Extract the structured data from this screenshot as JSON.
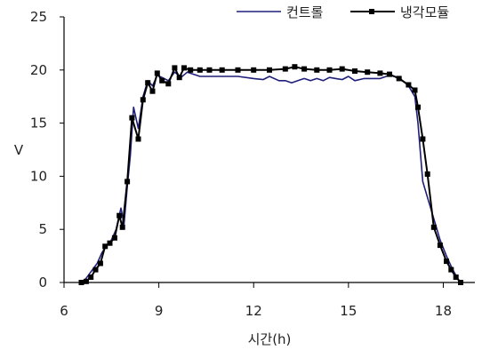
{
  "chart_data": {
    "type": "line",
    "xlabel": "시간(h)",
    "ylabel": "V",
    "xlim": [
      6,
      19
    ],
    "ylim": [
      0,
      25
    ],
    "xticks": [
      6,
      9,
      12,
      15,
      18
    ],
    "yticks": [
      0,
      5,
      10,
      15,
      20,
      25
    ],
    "grid": false,
    "legend_position": "top-right",
    "series": [
      {
        "name": "컨트롤",
        "color": "#1f1f7a",
        "marker": "none",
        "points": [
          [
            6.6,
            0.0
          ],
          [
            6.75,
            0.6
          ],
          [
            6.9,
            1.2
          ],
          [
            7.05,
            1.8
          ],
          [
            7.2,
            2.8
          ],
          [
            7.35,
            3.5
          ],
          [
            7.5,
            4.0
          ],
          [
            7.65,
            5.0
          ],
          [
            7.8,
            7.0
          ],
          [
            7.9,
            5.5
          ],
          [
            8.0,
            9.0
          ],
          [
            8.1,
            12.0
          ],
          [
            8.2,
            16.5
          ],
          [
            8.35,
            14.5
          ],
          [
            8.5,
            17.5
          ],
          [
            8.65,
            19.0
          ],
          [
            8.8,
            18.5
          ],
          [
            8.95,
            19.5
          ],
          [
            9.1,
            19.3
          ],
          [
            9.3,
            19.0
          ],
          [
            9.5,
            19.8
          ],
          [
            9.7,
            19.3
          ],
          [
            9.9,
            19.8
          ],
          [
            10.1,
            19.6
          ],
          [
            10.3,
            19.4
          ],
          [
            10.6,
            19.4
          ],
          [
            11.0,
            19.4
          ],
          [
            11.5,
            19.4
          ],
          [
            12.0,
            19.2
          ],
          [
            12.3,
            19.1
          ],
          [
            12.5,
            19.4
          ],
          [
            12.8,
            19.0
          ],
          [
            13.0,
            19.0
          ],
          [
            13.2,
            18.8
          ],
          [
            13.4,
            19.0
          ],
          [
            13.6,
            19.2
          ],
          [
            13.8,
            19.0
          ],
          [
            14.0,
            19.2
          ],
          [
            14.2,
            19.0
          ],
          [
            14.4,
            19.3
          ],
          [
            14.6,
            19.2
          ],
          [
            14.8,
            19.1
          ],
          [
            15.0,
            19.4
          ],
          [
            15.2,
            19.0
          ],
          [
            15.5,
            19.2
          ],
          [
            16.0,
            19.2
          ],
          [
            16.3,
            19.5
          ],
          [
            16.6,
            19.3
          ],
          [
            16.9,
            18.5
          ],
          [
            17.1,
            17.5
          ],
          [
            17.2,
            15.0
          ],
          [
            17.35,
            9.5
          ],
          [
            17.5,
            8.0
          ],
          [
            17.7,
            6.0
          ],
          [
            17.9,
            4.0
          ],
          [
            18.1,
            2.5
          ],
          [
            18.3,
            1.2
          ],
          [
            18.45,
            0.4
          ],
          [
            18.55,
            0.0
          ]
        ]
      },
      {
        "name": "냉각모듈",
        "color": "#000000",
        "marker": "square",
        "points": [
          [
            6.55,
            0.0
          ],
          [
            6.7,
            0.1
          ],
          [
            6.85,
            0.5
          ],
          [
            7.0,
            1.2
          ],
          [
            7.15,
            1.8
          ],
          [
            7.3,
            3.4
          ],
          [
            7.45,
            3.7
          ],
          [
            7.6,
            4.2
          ],
          [
            7.75,
            6.3
          ],
          [
            7.85,
            5.2
          ],
          [
            8.0,
            9.5
          ],
          [
            8.15,
            15.5
          ],
          [
            8.35,
            13.5
          ],
          [
            8.5,
            17.2
          ],
          [
            8.65,
            18.8
          ],
          [
            8.8,
            18.0
          ],
          [
            8.95,
            19.7
          ],
          [
            9.1,
            19.0
          ],
          [
            9.3,
            18.7
          ],
          [
            9.5,
            20.2
          ],
          [
            9.65,
            19.3
          ],
          [
            9.8,
            20.2
          ],
          [
            10.0,
            20.0
          ],
          [
            10.3,
            20.0
          ],
          [
            10.6,
            20.0
          ],
          [
            11.0,
            20.0
          ],
          [
            11.5,
            20.0
          ],
          [
            12.0,
            20.0
          ],
          [
            12.5,
            20.0
          ],
          [
            13.0,
            20.1
          ],
          [
            13.3,
            20.3
          ],
          [
            13.6,
            20.1
          ],
          [
            14.0,
            20.0
          ],
          [
            14.4,
            20.0
          ],
          [
            14.8,
            20.1
          ],
          [
            15.2,
            19.9
          ],
          [
            15.6,
            19.8
          ],
          [
            16.0,
            19.7
          ],
          [
            16.3,
            19.6
          ],
          [
            16.6,
            19.2
          ],
          [
            16.9,
            18.6
          ],
          [
            17.1,
            18.1
          ],
          [
            17.2,
            16.5
          ],
          [
            17.35,
            13.5
          ],
          [
            17.5,
            10.2
          ],
          [
            17.7,
            5.2
          ],
          [
            17.9,
            3.5
          ],
          [
            18.1,
            2.0
          ],
          [
            18.25,
            1.2
          ],
          [
            18.4,
            0.5
          ],
          [
            18.55,
            0.0
          ]
        ]
      }
    ]
  }
}
